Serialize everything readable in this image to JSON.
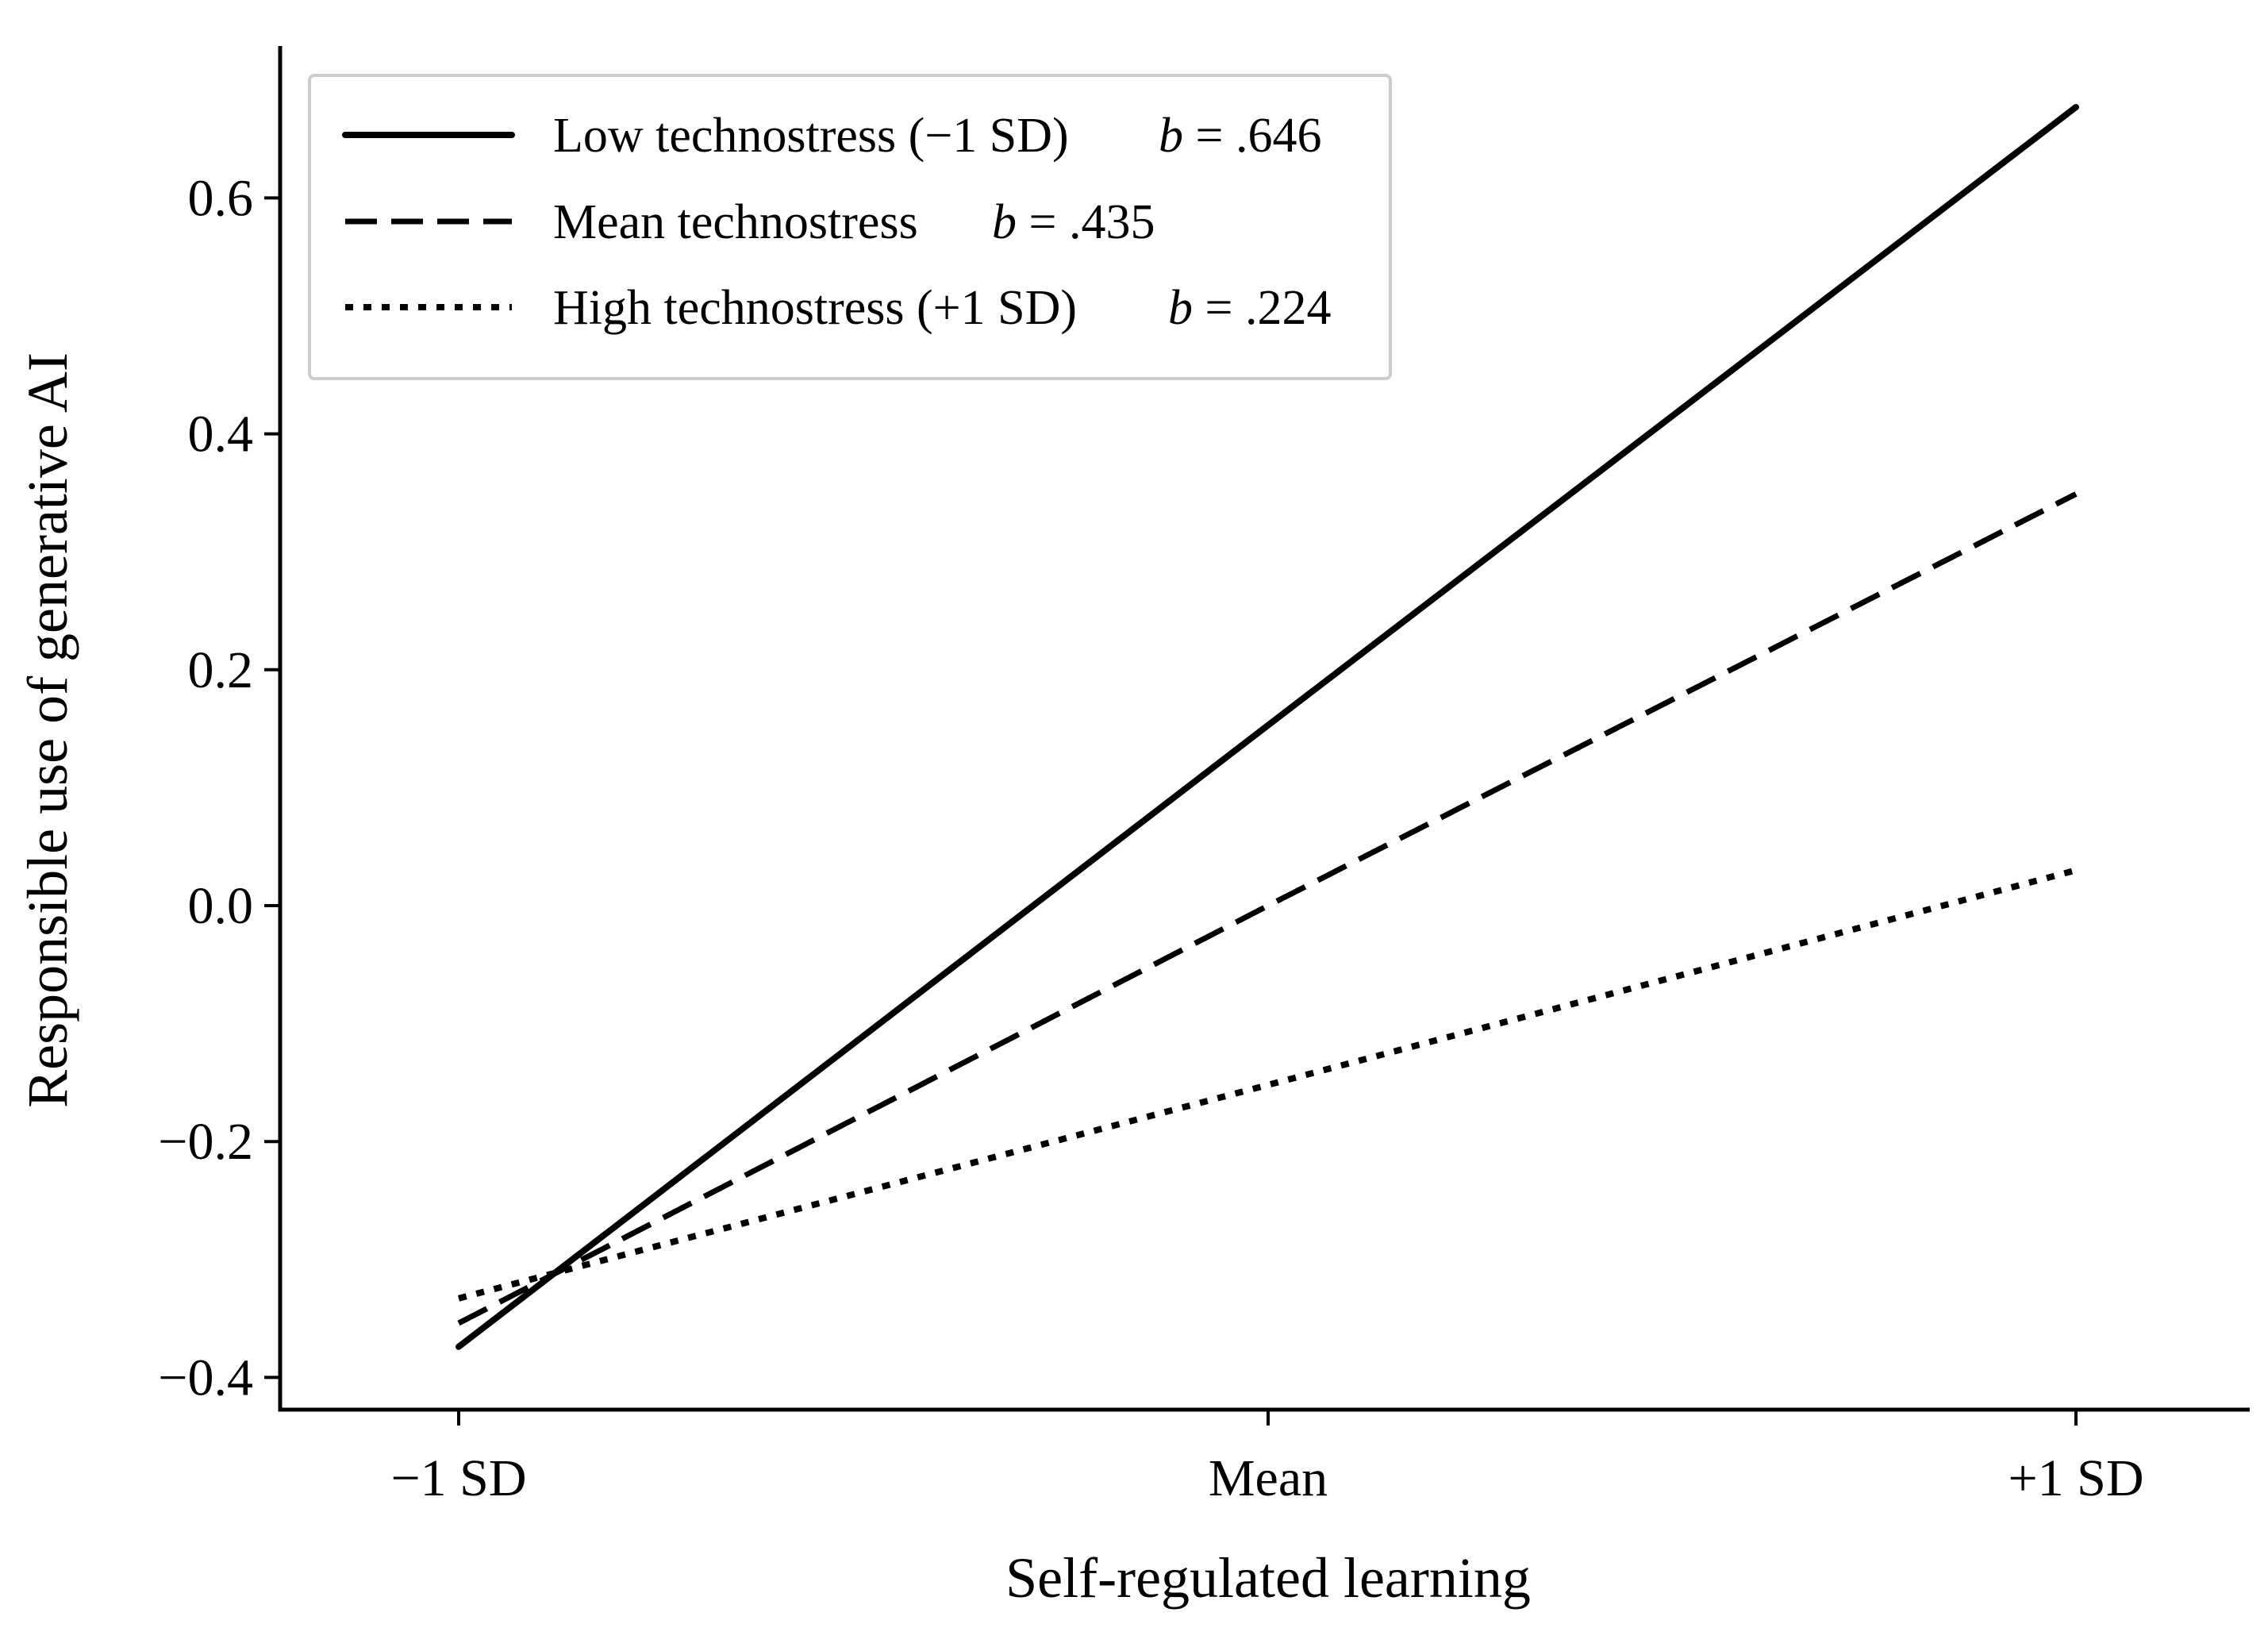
{
  "chart_data": {
    "type": "line",
    "title": "",
    "xlabel": "Self-regulated learning",
    "ylabel": "Responsible use of generative AI",
    "x_categories": [
      "−1 SD",
      "Mean",
      "+1 SD"
    ],
    "y_ticks": [
      -0.4,
      -0.2,
      0.0,
      0.2,
      0.4,
      0.6
    ],
    "y_tick_labels": [
      "−0.4",
      "−0.2",
      "0.0",
      "0.2",
      "0.4",
      "0.6"
    ],
    "ylim": [
      -0.43,
      0.73
    ],
    "grid": false,
    "legend_position": "upper-left",
    "series": [
      {
        "name": "Low technostress (−1 SD)",
        "b_label": "b",
        "b_value": " = .646",
        "style": "solid",
        "values": [
          -0.374,
          0.153,
          0.677
        ]
      },
      {
        "name": "Mean technostress",
        "b_label": "b",
        "b_value": " = .435",
        "style": "dashed",
        "values": [
          -0.354,
          0.0,
          0.349
        ]
      },
      {
        "name": "High technostress (+1 SD)",
        "b_label": "b",
        "b_value": " = .224",
        "style": "dotted",
        "values": [
          -0.333,
          -0.152,
          0.03
        ]
      }
    ],
    "colors": {
      "line": "#000000",
      "legend_border": "#cccccc",
      "background": "#ffffff"
    }
  }
}
